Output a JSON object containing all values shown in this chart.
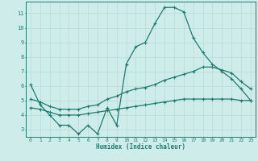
{
  "title": "",
  "xlabel": "Humidex (Indice chaleur)",
  "ylabel": "",
  "bg_color": "#ceecea",
  "grid_color": "#b8dbd8",
  "line_color": "#1e7b6e",
  "xlim": [
    -0.5,
    23.5
  ],
  "ylim": [
    2.5,
    11.8
  ],
  "xticks": [
    0,
    1,
    2,
    3,
    4,
    5,
    6,
    7,
    8,
    9,
    10,
    11,
    12,
    13,
    14,
    15,
    16,
    17,
    18,
    19,
    20,
    21,
    22,
    23
  ],
  "yticks": [
    3,
    4,
    5,
    6,
    7,
    8,
    9,
    10,
    11
  ],
  "line1_x": [
    0,
    1,
    2,
    3,
    4,
    5,
    6,
    7,
    8,
    9,
    10,
    11,
    12,
    13,
    14,
    15,
    16,
    17,
    18,
    19,
    20,
    21,
    22,
    23
  ],
  "line1_y": [
    6.1,
    4.7,
    4.0,
    3.3,
    3.3,
    2.7,
    3.3,
    2.7,
    4.5,
    3.3,
    7.5,
    8.7,
    9.0,
    10.3,
    11.4,
    11.4,
    11.1,
    9.3,
    8.3,
    7.5,
    7.0,
    6.5,
    5.8,
    5.0
  ],
  "line2_x": [
    0,
    1,
    2,
    3,
    4,
    5,
    6,
    7,
    8,
    9,
    10,
    11,
    12,
    13,
    14,
    15,
    16,
    17,
    18,
    19,
    20,
    21,
    22,
    23
  ],
  "line2_y": [
    5.1,
    4.9,
    4.6,
    4.4,
    4.4,
    4.4,
    4.6,
    4.7,
    5.1,
    5.3,
    5.6,
    5.8,
    5.9,
    6.1,
    6.4,
    6.6,
    6.8,
    7.0,
    7.3,
    7.3,
    7.1,
    6.9,
    6.3,
    5.8
  ],
  "line3_x": [
    0,
    1,
    2,
    3,
    4,
    5,
    6,
    7,
    8,
    9,
    10,
    11,
    12,
    13,
    14,
    15,
    16,
    17,
    18,
    19,
    20,
    21,
    22,
    23
  ],
  "line3_y": [
    4.5,
    4.4,
    4.2,
    4.0,
    4.0,
    4.0,
    4.1,
    4.2,
    4.3,
    4.4,
    4.5,
    4.6,
    4.7,
    4.8,
    4.9,
    5.0,
    5.1,
    5.1,
    5.1,
    5.1,
    5.1,
    5.1,
    5.0,
    5.0
  ]
}
